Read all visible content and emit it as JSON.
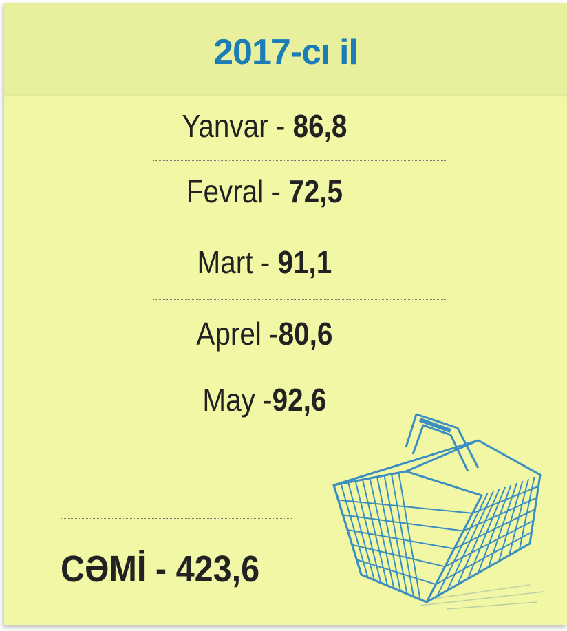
{
  "header": {
    "title": "2017-cı il"
  },
  "rows": [
    {
      "label": "Yanvar - ",
      "value": "86,8"
    },
    {
      "label": "Fevral - ",
      "value": "72,5"
    },
    {
      "label": "Mart - ",
      "value": "91,1"
    },
    {
      "label": "Aprel -",
      "value": "80,6"
    },
    {
      "label": "May -",
      "value": "92,6"
    }
  ],
  "total": {
    "label": "CƏMİ - ",
    "value": "423,6"
  }
}
